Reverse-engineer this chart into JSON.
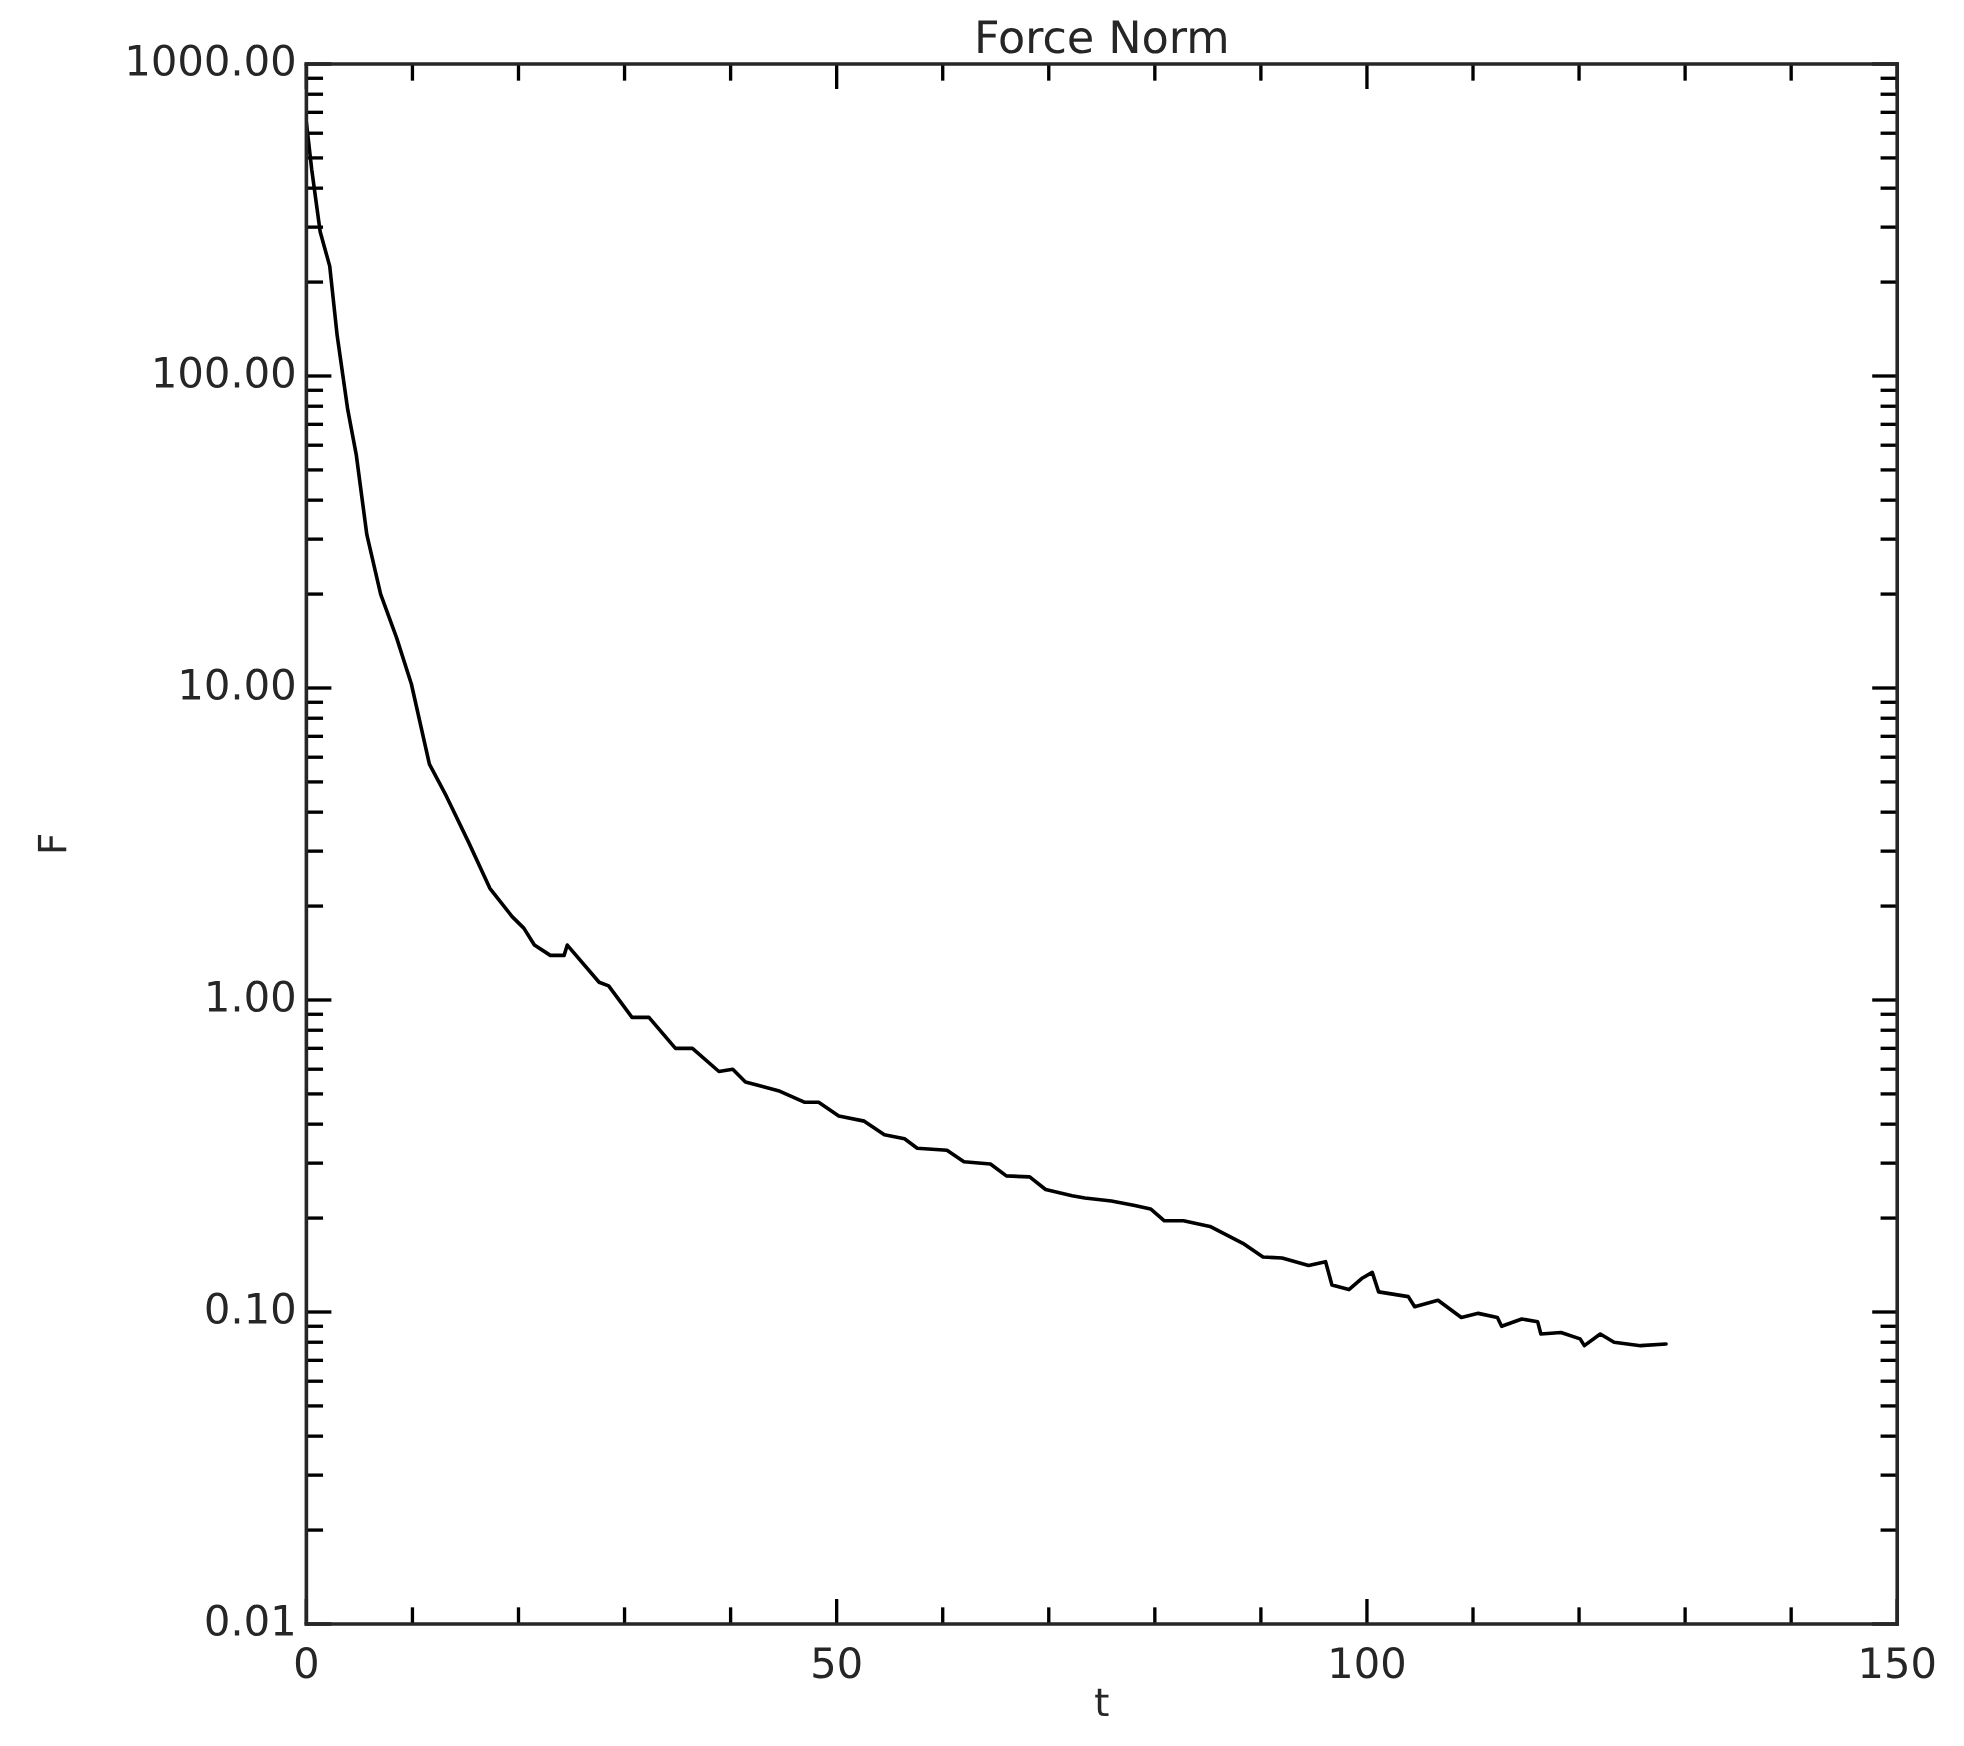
{
  "chart_data": {
    "type": "line",
    "title": "Force Norm",
    "xlabel": "t",
    "ylabel": "F",
    "log": "y",
    "grid": false,
    "legend": false,
    "xlim": [
      0,
      150
    ],
    "xticks": [
      0,
      50,
      100,
      150
    ],
    "ylim": [
      0.01,
      1000
    ],
    "yticks": [
      {
        "value": 0.01,
        "label": "0.01"
      },
      {
        "value": 0.1,
        "label": "0.10"
      },
      {
        "value": 1,
        "label": "1.00"
      },
      {
        "value": 10,
        "label": "10.00"
      },
      {
        "value": 100,
        "label": "100.00"
      },
      {
        "value": 1000,
        "label": "1000.00"
      }
    ],
    "series": [
      {
        "color": "#000000",
        "x": [
          0,
          0.5,
          1.3,
          2.2,
          2.9,
          3.9,
          4.7,
          5.7,
          7.0,
          8.5,
          9.9,
          11.6,
          13.2,
          15.3,
          17.3,
          19.4,
          20.5,
          21.5,
          23.0,
          24.3,
          24.6,
          27.6,
          28.5,
          30.7,
          32.3,
          34.8,
          36.4,
          38.9,
          40.2,
          41.4,
          44.5,
          47.0,
          48.3,
          50.2,
          52.6,
          54.5,
          56.4,
          57.6,
          60.4,
          62.0,
          64.5,
          66.0,
          68.2,
          69.7,
          72.2,
          73.4,
          75.9,
          78.0,
          79.6,
          80.9,
          82.7,
          85.2,
          88.3,
          90.2,
          92.0,
          94.5,
          96.1,
          96.7,
          98.3,
          99.5,
          100.5,
          101.1,
          103.9,
          104.5,
          106.7,
          108.9,
          110.5,
          112.3,
          112.7,
          114.6,
          116.1,
          116.4,
          118.3,
          120.1,
          120.5,
          122.0,
          123.3,
          125.8,
          128.2
        ],
        "values": [
          650,
          460,
          290,
          225,
          135,
          78,
          56,
          31,
          20,
          14.5,
          10.3,
          5.7,
          4.5,
          3.2,
          2.28,
          1.85,
          1.7,
          1.5,
          1.39,
          1.39,
          1.5,
          1.14,
          1.11,
          0.88,
          0.88,
          0.7,
          0.7,
          0.59,
          0.6,
          0.546,
          0.512,
          0.47,
          0.47,
          0.425,
          0.409,
          0.37,
          0.359,
          0.335,
          0.33,
          0.303,
          0.298,
          0.273,
          0.271,
          0.247,
          0.236,
          0.232,
          0.227,
          0.22,
          0.214,
          0.196,
          0.196,
          0.188,
          0.166,
          0.15,
          0.149,
          0.141,
          0.145,
          0.122,
          0.118,
          0.128,
          0.134,
          0.116,
          0.112,
          0.104,
          0.109,
          0.096,
          0.099,
          0.096,
          0.09,
          0.095,
          0.093,
          0.085,
          0.086,
          0.082,
          0.078,
          0.085,
          0.08,
          0.078,
          0.079
        ]
      }
    ]
  }
}
